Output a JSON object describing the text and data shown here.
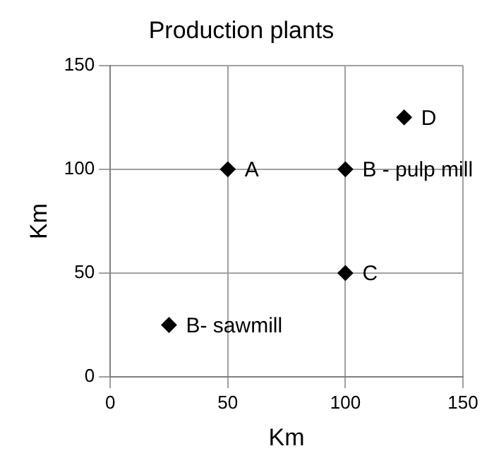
{
  "chart_data": {
    "type": "scatter",
    "title": "Production plants",
    "xlabel": "Km",
    "ylabel": "Km",
    "x": [
      50,
      100,
      100,
      125,
      25
    ],
    "values": [
      100,
      100,
      50,
      125,
      25
    ],
    "color": "#000000",
    "marker": "diamond",
    "grid": true,
    "xlim": [
      0,
      150
    ],
    "ylim": [
      0,
      150
    ],
    "xticks": [
      0,
      50,
      100,
      150
    ],
    "yticks": [
      0,
      50,
      100,
      150
    ],
    "annotations": [
      {
        "text": "A",
        "x": 50,
        "y": 100
      },
      {
        "text": "B - pulp mill",
        "x": 100,
        "y": 100
      },
      {
        "text": "C",
        "x": 100,
        "y": 50
      },
      {
        "text": "D",
        "x": 125,
        "y": 125
      },
      {
        "text": "B- sawmill",
        "x": 25,
        "y": 25
      }
    ]
  }
}
